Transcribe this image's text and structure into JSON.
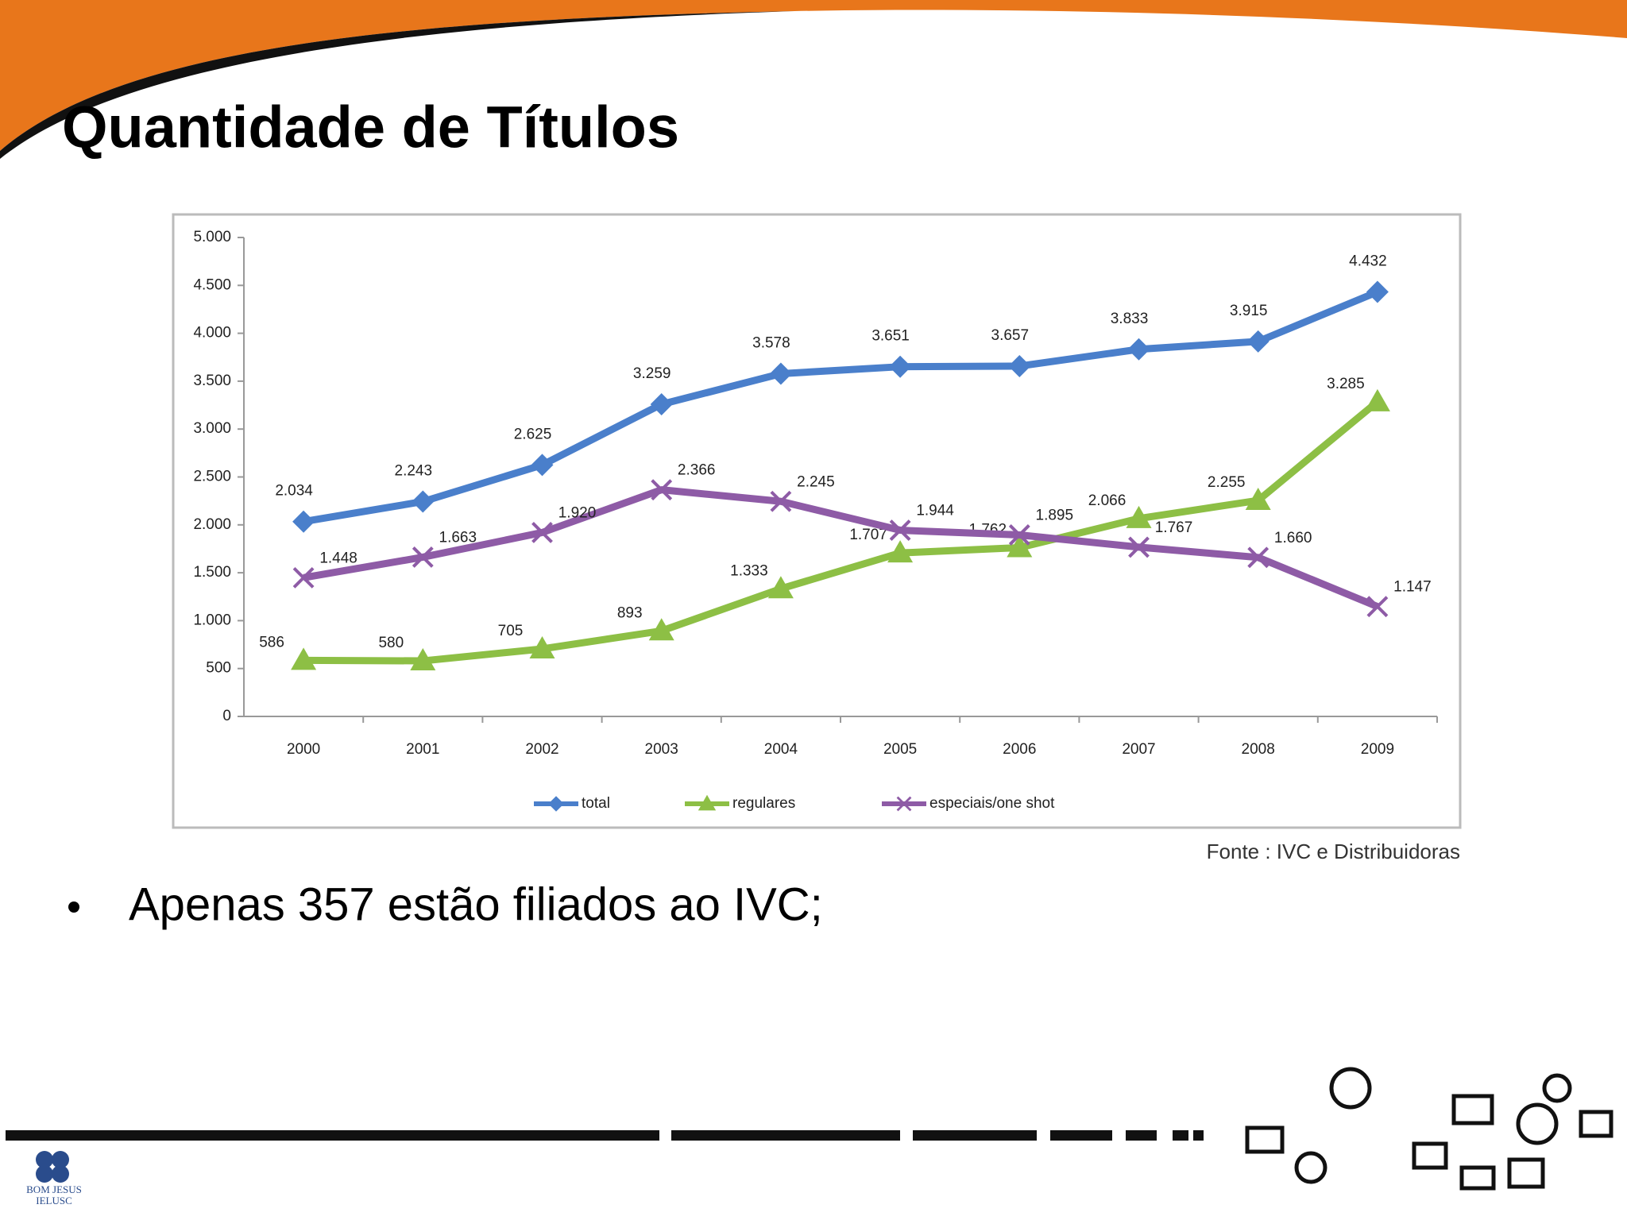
{
  "slide": {
    "title": "Quantidade de Títulos",
    "bullet": "Apenas 357 estão filiados ao IVC;",
    "source": "Fonte : IVC e Distribuidoras",
    "logo": [
      "BOM JESUS",
      "IELUSC"
    ]
  },
  "chart_data": {
    "type": "line",
    "categories": [
      "2000",
      "2001",
      "2002",
      "2003",
      "2004",
      "2005",
      "2006",
      "2007",
      "2008",
      "2009"
    ],
    "series": [
      {
        "name": "total",
        "color": "#4a7fcb",
        "marker": "diamond",
        "values": [
          2034,
          2243,
          2625,
          3259,
          3578,
          3651,
          3657,
          3833,
          3915,
          4432
        ],
        "value_labels": [
          "2.034",
          "2.243",
          "2.625",
          "3.259",
          "3.578",
          "3.651",
          "3.657",
          "3.833",
          "3.915",
          "4.432"
        ]
      },
      {
        "name": "regulares",
        "color": "#8dbf45",
        "marker": "triangle",
        "values": [
          586,
          580,
          705,
          893,
          1333,
          1707,
          1762,
          2066,
          2255,
          3285
        ],
        "value_labels": [
          "586",
          "580",
          "705",
          "893",
          "1.333",
          "1.707",
          "1.762",
          "2.066",
          "2.255",
          "3.285"
        ]
      },
      {
        "name": "especiais/one shot",
        "color": "#8e5ba6",
        "marker": "x",
        "values": [
          1448,
          1663,
          1920,
          2366,
          2245,
          1944,
          1895,
          1767,
          1660,
          1147
        ],
        "value_labels": [
          "1.448",
          "1.663",
          "1.920",
          "2.366",
          "2.245",
          "1.944",
          "1.895",
          "1.767",
          "1.660",
          "1.147"
        ]
      }
    ],
    "ylim": [
      0,
      5000
    ],
    "yticks": [
      0,
      500,
      {
        "value": 1000,
        "label": "1.000"
      },
      {
        "value": 1500,
        "label": "1.500"
      },
      {
        "value": 2000,
        "label": "2.000"
      },
      {
        "value": 2500,
        "label": "2.500"
      },
      {
        "value": 3000,
        "label": "3.000"
      },
      {
        "value": 3500,
        "label": "3.500"
      },
      {
        "value": 4000,
        "label": "4.000"
      },
      {
        "value": 4500,
        "label": "4.500"
      },
      {
        "value": 5000,
        "label": "5.000"
      }
    ],
    "legend": "bottom",
    "grid": false
  }
}
